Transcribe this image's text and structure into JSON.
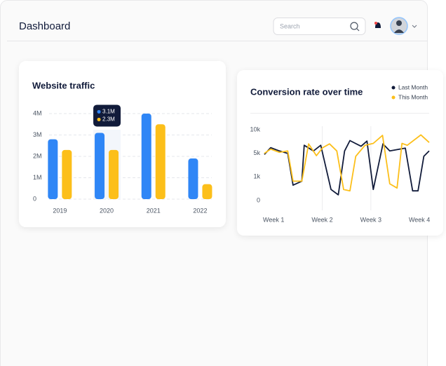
{
  "header": {
    "title": "Dashboard",
    "search_placeholder": "Search"
  },
  "chart_data": [
    {
      "type": "bar",
      "title": "Website traffic",
      "categories": [
        "2019",
        "2020",
        "2021",
        "2022"
      ],
      "series": [
        {
          "color": "#2f86f6",
          "values": [
            2.8,
            3.1,
            4.0,
            1.9
          ],
          "value_labels": [
            null,
            "3.1M",
            null,
            null
          ]
        },
        {
          "color": "#fcbf1a",
          "values": [
            2.3,
            2.3,
            3.5,
            0.7
          ],
          "value_labels": [
            null,
            "2.3M",
            null,
            null
          ]
        }
      ],
      "ylim": [
        0,
        4
      ],
      "yticks": [
        0,
        {
          "value": 1,
          "label": "1M"
        },
        {
          "value": 2,
          "label": "2M"
        },
        {
          "value": 3,
          "label": "3M"
        },
        {
          "value": 4,
          "label": "4M"
        }
      ],
      "grid": true
    },
    {
      "type": "line",
      "title": "Conversion rate over time",
      "series": [
        {
          "name": "Last Month",
          "color": "#111b3a",
          "x": [
            0.81,
            0.94,
            1.12,
            1.29,
            1.4,
            1.58,
            1.63,
            1.82,
            1.97,
            2.18,
            2.33,
            2.46,
            2.57,
            2.8,
            2.92,
            3.05,
            3.25,
            3.39,
            3.71,
            3.86,
            3.97,
            4.09,
            4.2
          ],
          "values": [
            4800,
            6200,
            5500,
            5000,
            650,
            820,
            6700,
            5500,
            6700,
            470,
            240,
            5500,
            7700,
            6500,
            7600,
            470,
            7000,
            5500,
            6100,
            410,
            410,
            4500,
            5500
          ]
        },
        {
          "name": "This Month",
          "color": "#fcbf1a",
          "x": [
            0.81,
            0.94,
            1.12,
            1.29,
            1.4,
            1.58,
            1.72,
            1.88,
            2.01,
            2.15,
            2.3,
            2.44,
            2.57,
            2.69,
            2.88,
            3.05,
            3.24,
            3.39,
            3.54,
            3.64,
            3.75,
            4.03,
            4.2
          ],
          "values": [
            5000,
            5900,
            5200,
            5500,
            820,
            820,
            7000,
            4600,
            6200,
            7000,
            5500,
            470,
            410,
            4500,
            6700,
            7100,
            8800,
            710,
            530,
            7100,
            6700,
            8900,
            7300
          ]
        }
      ],
      "xlim": [
        0.81,
        4.2
      ],
      "xticks": [
        {
          "value": 1,
          "label": "Week 1"
        },
        {
          "value": 2,
          "label": "Week 2"
        },
        {
          "value": 3,
          "label": "Week 3"
        },
        {
          "value": 4,
          "label": "Week 4"
        }
      ],
      "ylim": [
        0,
        10000
      ],
      "yticks": [
        0,
        {
          "value": 1000,
          "label": "1k"
        },
        {
          "value": 5000,
          "label": "5k"
        },
        {
          "value": 10000,
          "label": "10k"
        }
      ],
      "legend": "top-right"
    }
  ]
}
